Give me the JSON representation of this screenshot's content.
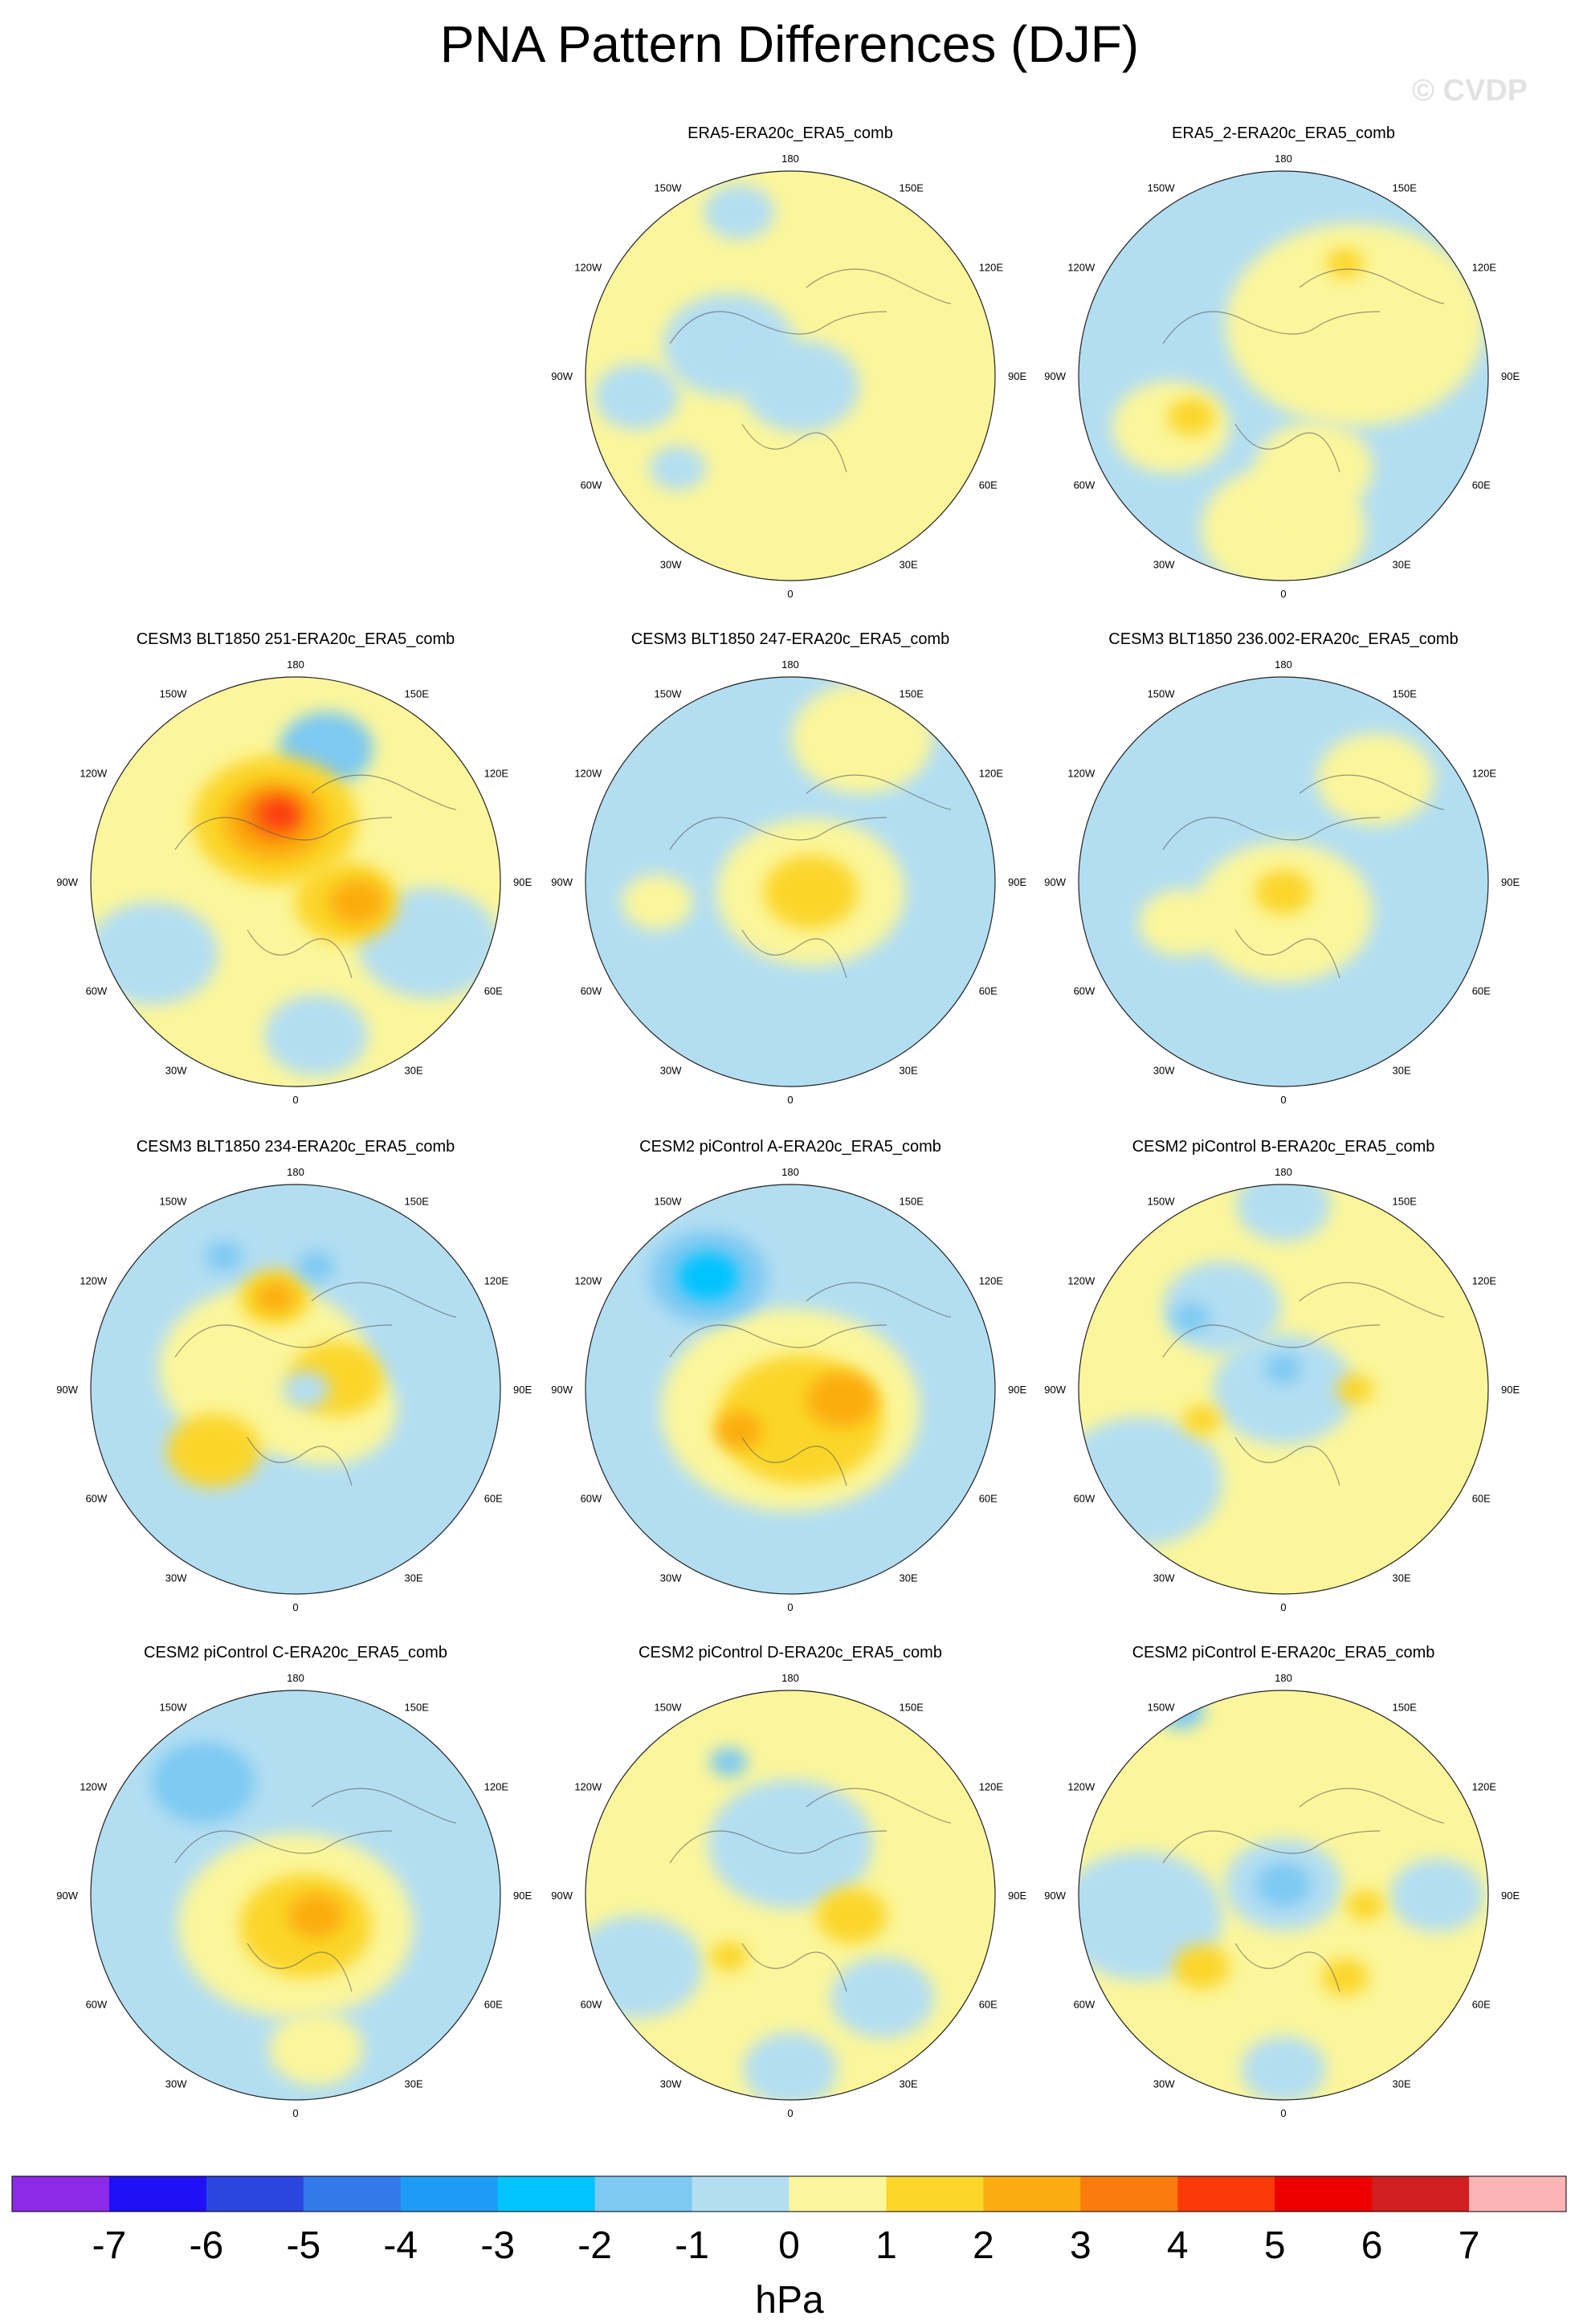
{
  "chart_data": {
    "type": "map",
    "title": "PNA Pattern Differences (DJF)",
    "watermark": "© CVDP",
    "projection": "north-polar-stereographic",
    "longitude_labels": [
      "180",
      "150E",
      "120E",
      "90E",
      "60E",
      "30E",
      "0",
      "30W",
      "60W",
      "90W",
      "120W",
      "150W"
    ],
    "colorbar": {
      "unit": "hPa",
      "levels": [
        -7,
        -6,
        -5,
        -4,
        -3,
        -2,
        -1,
        0,
        1,
        2,
        3,
        4,
        5,
        6,
        7
      ],
      "tick_labels": [
        "-7",
        "-6",
        "-5",
        "-4",
        "-3",
        "-2",
        "-1",
        "0",
        "1",
        "2",
        "3",
        "4",
        "5",
        "6",
        "7"
      ],
      "colors": [
        "#8c2ae8",
        "#1f10f5",
        "#2b45e0",
        "#3379ea",
        "#1e9cf5",
        "#00c3ff",
        "#7dc9f2",
        "#b3def2",
        "#fbf69b",
        "#fbd62b",
        "#fbac10",
        "#fb7c0d",
        "#fb3a0a",
        "#ec0000",
        "#d11f1f",
        "#fcb4b4"
      ]
    },
    "panels": [
      {
        "title": "ERA5-ERA20c_ERA5_comb",
        "background": "#fbf69b",
        "blobs": [
          {
            "x": -0.3,
            "y": -0.15,
            "r": 0.28,
            "c": "#b3def2"
          },
          {
            "x": 0.05,
            "y": 0.05,
            "r": 0.25,
            "c": "#b3def2"
          },
          {
            "x": -0.75,
            "y": 0.1,
            "r": 0.18,
            "c": "#b3def2"
          },
          {
            "x": -0.55,
            "y": 0.45,
            "r": 0.12,
            "c": "#b3def2"
          },
          {
            "x": -0.25,
            "y": -0.8,
            "r": 0.15,
            "c": "#b3def2"
          }
        ]
      },
      {
        "title": "ERA5_2-ERA20c_ERA5_comb",
        "background": "#b3def2",
        "blobs": [
          {
            "x": 0.35,
            "y": -0.25,
            "r": 0.55,
            "c": "#fbf69b"
          },
          {
            "x": 0.0,
            "y": 0.75,
            "r": 0.35,
            "c": "#fbf69b"
          },
          {
            "x": -0.55,
            "y": 0.25,
            "r": 0.25,
            "c": "#fbf69b"
          },
          {
            "x": 0.15,
            "y": 0.45,
            "r": 0.25,
            "c": "#fbf69b"
          },
          {
            "x": -0.45,
            "y": 0.2,
            "r": 0.1,
            "c": "#fbd62b"
          },
          {
            "x": 0.3,
            "y": -0.55,
            "r": 0.08,
            "c": "#fbd62b"
          }
        ]
      },
      {
        "title": "CESM3 BLT1850 251-ERA20c_ERA5_comb",
        "background": "#fbf69b",
        "blobs": [
          {
            "x": -0.7,
            "y": 0.35,
            "r": 0.28,
            "c": "#b3def2"
          },
          {
            "x": 0.65,
            "y": 0.3,
            "r": 0.3,
            "c": "#b3def2"
          },
          {
            "x": 0.1,
            "y": 0.75,
            "r": 0.22,
            "c": "#b3def2"
          },
          {
            "x": 0.15,
            "y": -0.65,
            "r": 0.2,
            "c": "#7dc9f2"
          },
          {
            "x": -0.1,
            "y": -0.3,
            "r": 0.35,
            "c": "#fbd62b"
          },
          {
            "x": 0.25,
            "y": 0.1,
            "r": 0.22,
            "c": "#fbd62b"
          },
          {
            "x": -0.1,
            "y": -0.3,
            "r": 0.22,
            "c": "#fbac10"
          },
          {
            "x": 0.3,
            "y": 0.1,
            "r": 0.12,
            "c": "#fbac10"
          },
          {
            "x": -0.1,
            "y": -0.32,
            "r": 0.13,
            "c": "#fb7c0d"
          },
          {
            "x": -0.08,
            "y": -0.33,
            "r": 0.08,
            "c": "#fb3a0a"
          }
        ]
      },
      {
        "title": "CESM3 BLT1850 247-ERA20c_ERA5_comb",
        "background": "#b3def2",
        "blobs": [
          {
            "x": 0.1,
            "y": 0.05,
            "r": 0.4,
            "c": "#fbf69b"
          },
          {
            "x": 0.35,
            "y": -0.7,
            "r": 0.3,
            "c": "#fbf69b"
          },
          {
            "x": -0.65,
            "y": 0.1,
            "r": 0.15,
            "c": "#fbf69b"
          },
          {
            "x": 0.1,
            "y": 0.05,
            "r": 0.2,
            "c": "#fbd62b"
          }
        ]
      },
      {
        "title": "CESM3 BLT1850 236.002-ERA20c_ERA5_comb",
        "background": "#b3def2",
        "blobs": [
          {
            "x": 0.0,
            "y": 0.15,
            "r": 0.38,
            "c": "#fbf69b"
          },
          {
            "x": 0.45,
            "y": -0.5,
            "r": 0.25,
            "c": "#fbf69b"
          },
          {
            "x": -0.5,
            "y": 0.2,
            "r": 0.18,
            "c": "#fbf69b"
          },
          {
            "x": 0.0,
            "y": 0.05,
            "r": 0.12,
            "c": "#fbd62b"
          }
        ]
      },
      {
        "title": "CESM3 BLT1850 234-ERA20c_ERA5_comb",
        "background": "#b3def2",
        "blobs": [
          {
            "x": -0.15,
            "y": -0.1,
            "r": 0.45,
            "c": "#fbf69b"
          },
          {
            "x": 0.15,
            "y": 0.1,
            "r": 0.3,
            "c": "#fbf69b"
          },
          {
            "x": -0.4,
            "y": 0.3,
            "r": 0.2,
            "c": "#fbd62b"
          },
          {
            "x": 0.2,
            "y": -0.05,
            "r": 0.2,
            "c": "#fbd62b"
          },
          {
            "x": -0.1,
            "y": -0.45,
            "r": 0.15,
            "c": "#fbd62b"
          },
          {
            "x": -0.1,
            "y": -0.45,
            "r": 0.08,
            "c": "#fbac10"
          },
          {
            "x": 0.05,
            "y": 0.0,
            "r": 0.1,
            "c": "#b3def2"
          },
          {
            "x": -0.35,
            "y": -0.65,
            "r": 0.08,
            "c": "#7dc9f2"
          },
          {
            "x": 0.1,
            "y": -0.6,
            "r": 0.08,
            "c": "#7dc9f2"
          }
        ]
      },
      {
        "title": "CESM2 piControl A-ERA20c_ERA5_comb",
        "background": "#b3def2",
        "blobs": [
          {
            "x": 0.0,
            "y": 0.1,
            "r": 0.55,
            "c": "#fbf69b"
          },
          {
            "x": 0.05,
            "y": 0.15,
            "r": 0.35,
            "c": "#fbd62b"
          },
          {
            "x": 0.25,
            "y": 0.05,
            "r": 0.15,
            "c": "#fbac10"
          },
          {
            "x": -0.25,
            "y": 0.2,
            "r": 0.1,
            "c": "#fbac10"
          },
          {
            "x": -0.4,
            "y": -0.55,
            "r": 0.25,
            "c": "#7dc9f2"
          },
          {
            "x": -0.4,
            "y": -0.55,
            "r": 0.13,
            "c": "#00c3ff"
          }
        ]
      },
      {
        "title": "CESM2 piControl B-ERA20c_ERA5_comb",
        "background": "#fbf69b",
        "blobs": [
          {
            "x": -0.7,
            "y": 0.45,
            "r": 0.35,
            "c": "#b3def2"
          },
          {
            "x": 0.0,
            "y": 0.0,
            "r": 0.3,
            "c": "#b3def2"
          },
          {
            "x": -0.3,
            "y": -0.4,
            "r": 0.25,
            "c": "#b3def2"
          },
          {
            "x": 0.0,
            "y": -0.9,
            "r": 0.2,
            "c": "#b3def2"
          },
          {
            "x": -0.45,
            "y": -0.35,
            "r": 0.08,
            "c": "#7dc9f2"
          },
          {
            "x": 0.0,
            "y": -0.1,
            "r": 0.08,
            "c": "#7dc9f2"
          },
          {
            "x": -0.4,
            "y": 0.15,
            "r": 0.08,
            "c": "#fbd62b"
          },
          {
            "x": 0.35,
            "y": 0.0,
            "r": 0.08,
            "c": "#fbd62b"
          }
        ]
      },
      {
        "title": "CESM2 piControl C-ERA20c_ERA5_comb",
        "background": "#b3def2",
        "blobs": [
          {
            "x": 0.0,
            "y": 0.15,
            "r": 0.5,
            "c": "#fbf69b"
          },
          {
            "x": 0.05,
            "y": 0.15,
            "r": 0.28,
            "c": "#fbd62b"
          },
          {
            "x": 0.1,
            "y": 0.1,
            "r": 0.12,
            "c": "#fbac10"
          },
          {
            "x": -0.45,
            "y": -0.55,
            "r": 0.22,
            "c": "#7dc9f2"
          },
          {
            "x": 0.1,
            "y": 0.75,
            "r": 0.2,
            "c": "#fbf69b"
          }
        ]
      },
      {
        "title": "CESM2 piControl D-ERA20c_ERA5_comb",
        "background": "#fbf69b",
        "blobs": [
          {
            "x": -0.75,
            "y": 0.35,
            "r": 0.28,
            "c": "#b3def2"
          },
          {
            "x": 0.0,
            "y": -0.25,
            "r": 0.35,
            "c": "#b3def2"
          },
          {
            "x": 0.45,
            "y": 0.5,
            "r": 0.22,
            "c": "#b3def2"
          },
          {
            "x": 0.0,
            "y": 0.85,
            "r": 0.2,
            "c": "#b3def2"
          },
          {
            "x": -0.3,
            "y": -0.65,
            "r": 0.08,
            "c": "#7dc9f2"
          },
          {
            "x": 0.3,
            "y": 0.1,
            "r": 0.15,
            "c": "#fbd62b"
          },
          {
            "x": -0.3,
            "y": 0.3,
            "r": 0.08,
            "c": "#fbd62b"
          }
        ]
      },
      {
        "title": "CESM2 piControl E-ERA20c_ERA5_comb",
        "background": "#fbf69b",
        "blobs": [
          {
            "x": -0.7,
            "y": 0.1,
            "r": 0.35,
            "c": "#b3def2"
          },
          {
            "x": 0.0,
            "y": -0.05,
            "r": 0.25,
            "c": "#b3def2"
          },
          {
            "x": 0.75,
            "y": 0.0,
            "r": 0.2,
            "c": "#b3def2"
          },
          {
            "x": 0.0,
            "y": 0.85,
            "r": 0.18,
            "c": "#b3def2"
          },
          {
            "x": 0.0,
            "y": -0.05,
            "r": 0.12,
            "c": "#7dc9f2"
          },
          {
            "x": -0.5,
            "y": -0.9,
            "r": 0.1,
            "c": "#7dc9f2"
          },
          {
            "x": -0.4,
            "y": 0.35,
            "r": 0.12,
            "c": "#fbd62b"
          },
          {
            "x": 0.3,
            "y": 0.4,
            "r": 0.1,
            "c": "#fbd62b"
          },
          {
            "x": 0.4,
            "y": 0.05,
            "r": 0.08,
            "c": "#fbd62b"
          }
        ]
      }
    ]
  }
}
